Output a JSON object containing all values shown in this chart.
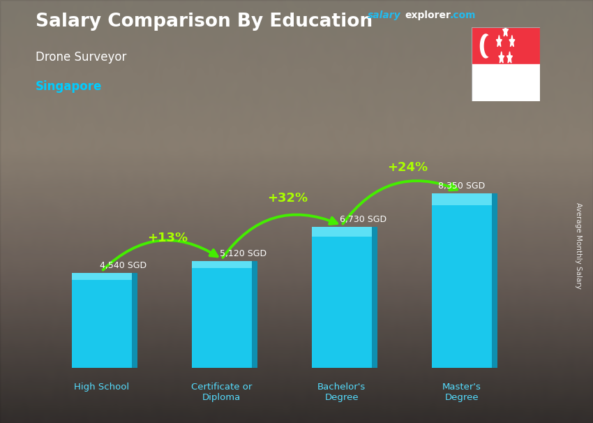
{
  "title": "Salary Comparison By Education",
  "subtitle": "Drone Surveyor",
  "location": "Singapore",
  "categories": [
    "High School",
    "Certificate or\nDiploma",
    "Bachelor's\nDegree",
    "Master's\nDegree"
  ],
  "values": [
    4540,
    5120,
    6730,
    8350
  ],
  "value_labels": [
    "4,540 SGD",
    "5,120 SGD",
    "6,730 SGD",
    "8,350 SGD"
  ],
  "pct_changes": [
    "+13%",
    "+32%",
    "+24%"
  ],
  "bar_color_face": "#1ac8ed",
  "bar_color_side": "#0e8fb0",
  "bar_color_top": "#5de0f5",
  "bg_top_color": "#8a8a7a",
  "bg_mid_color": "#7a6a5a",
  "bg_bot_color": "#2a3040",
  "title_color": "#ffffff",
  "subtitle_color": "#ffffff",
  "location_color": "#00ccff",
  "value_label_color": "#ffffff",
  "pct_color": "#aaff00",
  "arrow_color": "#44ee00",
  "ylabel": "Average Monthly Salary",
  "ylim": [
    0,
    10500
  ],
  "bar_width": 0.5,
  "x_positions": [
    0,
    1,
    2,
    3
  ]
}
